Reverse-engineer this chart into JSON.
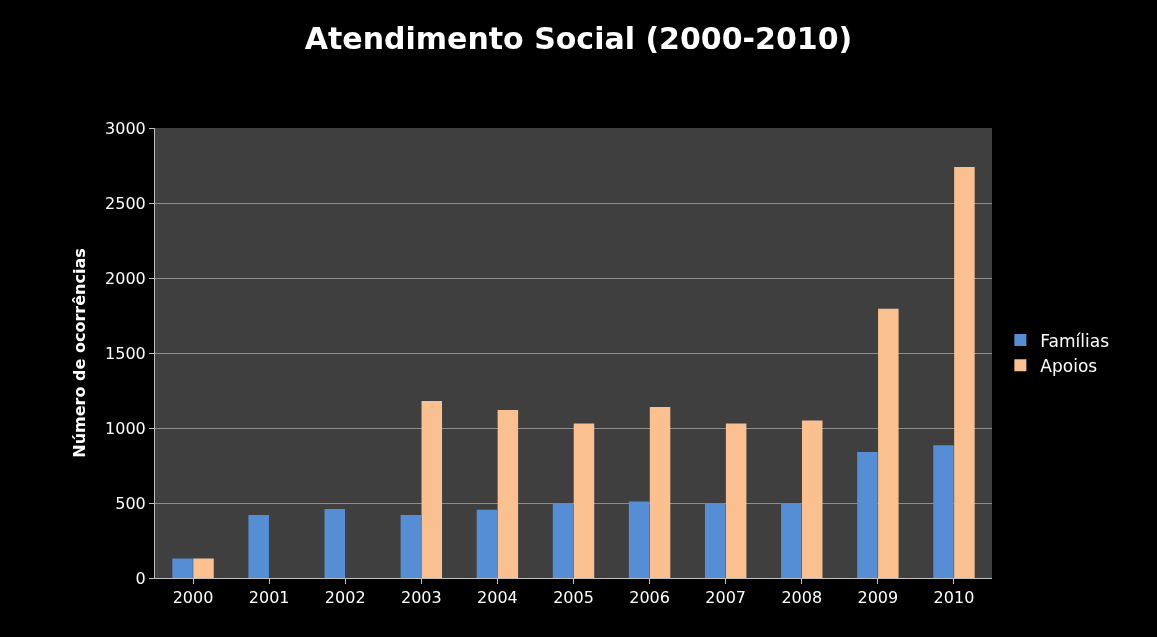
{
  "chart_data": {
    "type": "bar",
    "title": "Atendimento Social (2000-2010)",
    "ylabel": "Número de ocorrências",
    "categories": [
      "2000",
      "2001",
      "2002",
      "2003",
      "2004",
      "2005",
      "2006",
      "2007",
      "2008",
      "2009",
      "2010"
    ],
    "series": [
      {
        "name": "Famílias",
        "color": "#558ed5",
        "values": [
          130,
          420,
          460,
          420,
          455,
          500,
          510,
          500,
          500,
          840,
          885
        ]
      },
      {
        "name": "Apoios",
        "color": "#fac090",
        "values": [
          130,
          null,
          null,
          1180,
          1120,
          1030,
          1140,
          1030,
          1050,
          1795,
          2740
        ]
      }
    ],
    "ylim": [
      0,
      3000
    ],
    "yticks": [
      0,
      500,
      1000,
      1500,
      2000,
      2500,
      3000
    ],
    "grid": "y",
    "legend": "right"
  }
}
